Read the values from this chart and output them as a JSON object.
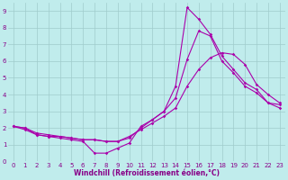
{
  "xlabel": "Windchill (Refroidissement éolien,°C)",
  "ylabel": "",
  "bg_color": "#c0ecec",
  "line_color": "#aa00aa",
  "grid_color": "#a0cccc",
  "xlim": [
    -0.5,
    23.5
  ],
  "ylim": [
    0,
    9.5
  ],
  "xticks": [
    0,
    1,
    2,
    3,
    4,
    5,
    6,
    7,
    8,
    9,
    10,
    11,
    12,
    13,
    14,
    15,
    16,
    17,
    18,
    19,
    20,
    21,
    22,
    23
  ],
  "yticks": [
    0,
    1,
    2,
    3,
    4,
    5,
    6,
    7,
    8,
    9
  ],
  "line1_x": [
    0,
    1,
    2,
    3,
    4,
    5,
    6,
    7,
    8,
    9,
    10,
    11,
    12,
    13,
    14,
    15,
    16,
    17,
    18,
    19,
    20,
    21,
    22,
    23
  ],
  "line1_y": [
    2.1,
    1.9,
    1.6,
    1.5,
    1.4,
    1.3,
    1.2,
    0.5,
    0.5,
    0.8,
    1.1,
    2.1,
    2.5,
    3.0,
    4.5,
    9.2,
    8.5,
    7.6,
    6.3,
    5.5,
    4.7,
    4.3,
    3.5,
    3.2
  ],
  "line2_x": [
    0,
    1,
    2,
    3,
    4,
    5,
    6,
    7,
    8,
    9,
    10,
    11,
    12,
    13,
    14,
    15,
    16,
    17,
    18,
    19,
    20,
    21,
    22,
    23
  ],
  "line2_y": [
    2.1,
    2.0,
    1.6,
    1.5,
    1.5,
    1.4,
    1.3,
    1.3,
    1.2,
    1.2,
    1.4,
    2.0,
    2.5,
    3.0,
    3.8,
    6.1,
    7.8,
    7.5,
    6.0,
    5.3,
    4.5,
    4.1,
    3.5,
    3.4
  ],
  "line3_x": [
    0,
    1,
    2,
    3,
    4,
    5,
    6,
    7,
    8,
    9,
    10,
    11,
    12,
    13,
    14,
    15,
    16,
    17,
    18,
    19,
    20,
    21,
    22,
    23
  ],
  "line3_y": [
    2.1,
    2.0,
    1.7,
    1.6,
    1.5,
    1.4,
    1.3,
    1.3,
    1.2,
    1.2,
    1.5,
    1.9,
    2.3,
    2.7,
    3.2,
    4.5,
    5.5,
    6.2,
    6.5,
    6.4,
    5.8,
    4.6,
    4.0,
    3.5
  ],
  "marker": "D",
  "markersize": 1.8,
  "linewidth": 0.8,
  "xlabel_fontsize": 5.5,
  "tick_fontsize": 5,
  "tick_color": "#880088",
  "label_color": "#880088",
  "spine_color": "#888888"
}
